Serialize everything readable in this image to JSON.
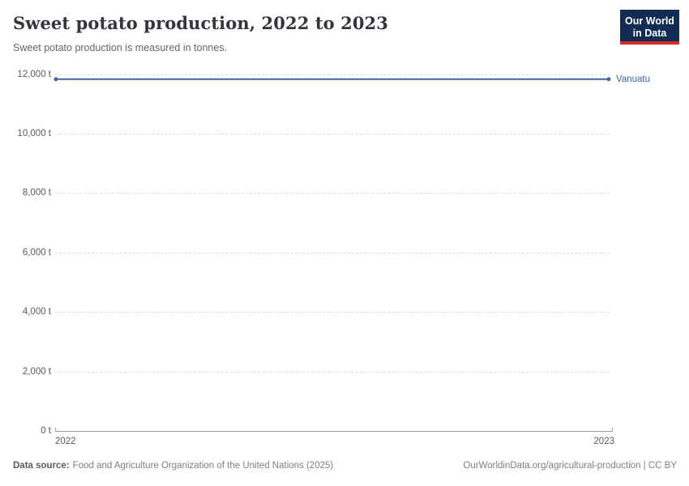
{
  "header": {
    "title": "Sweet potato production, 2022 to 2023",
    "subtitle": "Sweet potato production is measured in tonnes."
  },
  "logo": {
    "line1": "Our World",
    "line2": "in Data",
    "bg_color": "#122B52",
    "accent_color": "#D42B22"
  },
  "footer": {
    "source_label": "Data source:",
    "source_text": "Food and Agriculture Organization of the United Nations (2025)",
    "license_text": "OurWorldinData.org/agricultural-production | CC BY"
  },
  "chart_data": {
    "type": "line",
    "title": "Sweet potato production, 2022 to 2023",
    "subtitle": "Sweet potato production is measured in tonnes.",
    "unit": "t",
    "x": [
      2022,
      2023
    ],
    "x_labels": [
      "2022",
      "2023"
    ],
    "series": [
      {
        "name": "Vanuatu",
        "values": [
          11830,
          11830
        ],
        "color": "#4166A5"
      }
    ],
    "ylim": [
      0,
      12000
    ],
    "yticks": [
      {
        "value": 0,
        "label": "0 t"
      },
      {
        "value": 2000,
        "label": "2,000 t"
      },
      {
        "value": 4000,
        "label": "4,000 t"
      },
      {
        "value": 6000,
        "label": "6,000 t"
      },
      {
        "value": 8000,
        "label": "8,000 t"
      },
      {
        "value": 10000,
        "label": "10,000 t"
      },
      {
        "value": 12000,
        "label": "12,000 t"
      }
    ],
    "grid": true,
    "gridline_style": "dashed",
    "gridline_color": "#dcdcdc",
    "axis_color": "#a3a3a3",
    "tick_label_color": "#5b5b5b",
    "legend_position": "right-of-line-end"
  }
}
